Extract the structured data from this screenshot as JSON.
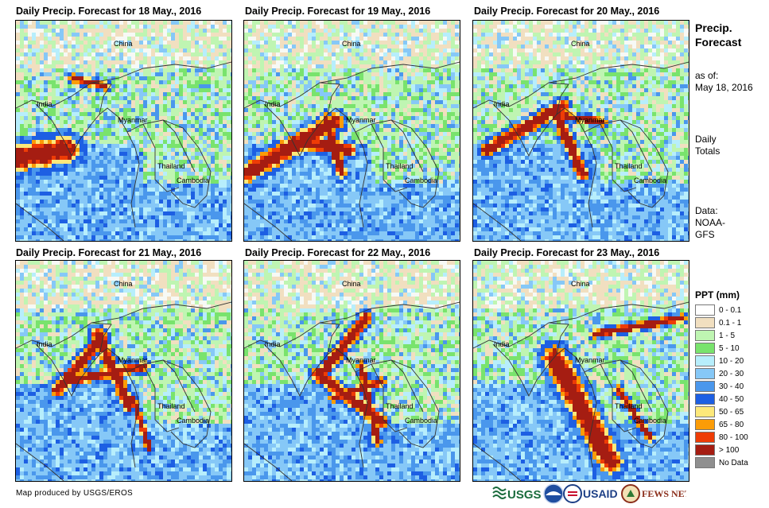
{
  "panels": [
    {
      "title": "Daily Precip. Forecast for 18 May., 2016",
      "variant": 0
    },
    {
      "title": "Daily Precip. Forecast for 19 May., 2016",
      "variant": 1
    },
    {
      "title": "Daily Precip. Forecast for 20 May., 2016",
      "variant": 2
    },
    {
      "title": "Daily Precip. Forecast for 21 May., 2016",
      "variant": 3
    },
    {
      "title": "Daily Precip. Forecast for 22 May., 2016",
      "variant": 4
    },
    {
      "title": "Daily Precip. Forecast for 23 May., 2016",
      "variant": 5
    }
  ],
  "map_labels": {
    "china": "China",
    "india": "India",
    "myanmar": "Myanmar",
    "thailand": "Thailand",
    "cambodia": "Cambodia"
  },
  "sidebar": {
    "title_line1": "Precip.",
    "title_line2": "Forecast",
    "asof_label": "as of:",
    "asof_date": "May 18, 2016",
    "totals_line1": "Daily",
    "totals_line2": "Totals",
    "data_label": "Data:",
    "data_source1": "NOAA-",
    "data_source2": "GFS"
  },
  "legend": {
    "title": "PPT (mm)",
    "items": [
      {
        "label": "0 - 0.1",
        "color": "#ffffff"
      },
      {
        "label": "0.1 - 1",
        "color": "#f1dfc0"
      },
      {
        "label": "1 - 5",
        "color": "#bff5b2"
      },
      {
        "label": "5 - 10",
        "color": "#79e36d"
      },
      {
        "label": "10 - 20",
        "color": "#b7eefc"
      },
      {
        "label": "20 - 30",
        "color": "#86c8f7"
      },
      {
        "label": "30 - 40",
        "color": "#4a97ec"
      },
      {
        "label": "40 - 50",
        "color": "#1d5fe3"
      },
      {
        "label": "50 - 65",
        "color": "#fde87a"
      },
      {
        "label": "65 - 80",
        "color": "#fb9c07"
      },
      {
        "label": "80 - 100",
        "color": "#ee3c06"
      },
      {
        "label": "> 100",
        "color": "#a51d12"
      },
      {
        "label": "No Data",
        "color": "#8f8f8f"
      }
    ]
  },
  "footer": {
    "credit": "Map produced by USGS/EROS"
  },
  "logos": {
    "usgs": "USGS",
    "usaid": "USAID",
    "fewsnet": "FEWS NET"
  }
}
